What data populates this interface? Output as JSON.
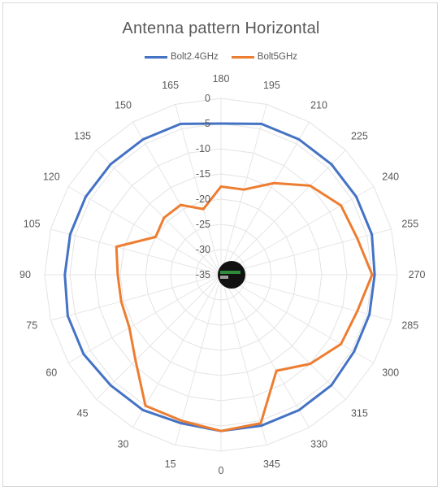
{
  "chart_data": {
    "type": "radar",
    "title": "Antenna pattern Horizontal",
    "categories": [
      "0",
      "15",
      "30",
      "45",
      "60",
      "75",
      "90",
      "105",
      "120",
      "135",
      "150",
      "165",
      "180",
      "195",
      "210",
      "225",
      "240",
      "255",
      "270",
      "285",
      "300",
      "315",
      "330",
      "345"
    ],
    "category_order_clockwise_from_bottom": true,
    "radial_axis": {
      "min": -35,
      "max": 0,
      "step": 5,
      "ticks": [
        "0",
        "-5",
        "-10",
        "-15",
        "-20",
        "-25",
        "-30",
        "-35"
      ]
    },
    "legend_position": "top",
    "series": [
      {
        "name": "Bolt2.4GHz",
        "color": "#4472c4",
        "values": [
          -4,
          -4.5,
          -4,
          -4,
          -3.5,
          -3.5,
          -4,
          -4,
          -4,
          -4,
          -4,
          -4,
          -5,
          -4,
          -4,
          -4,
          -4,
          -4,
          -4.5,
          -4.5,
          -4.5,
          -4,
          -4,
          -4
        ]
      },
      {
        "name": "Bolt5GHz",
        "color": "#ed7d31",
        "values": [
          -4,
          -5,
          -5,
          -11,
          -14,
          -14.5,
          -14.5,
          -13.5,
          -20,
          -19,
          -19,
          -21.5,
          -17.5,
          -17.5,
          -14,
          -10,
          -7.5,
          -7,
          -5,
          -7,
          -7.5,
          -10,
          -13,
          -4.5
        ]
      }
    ],
    "grid": true
  }
}
